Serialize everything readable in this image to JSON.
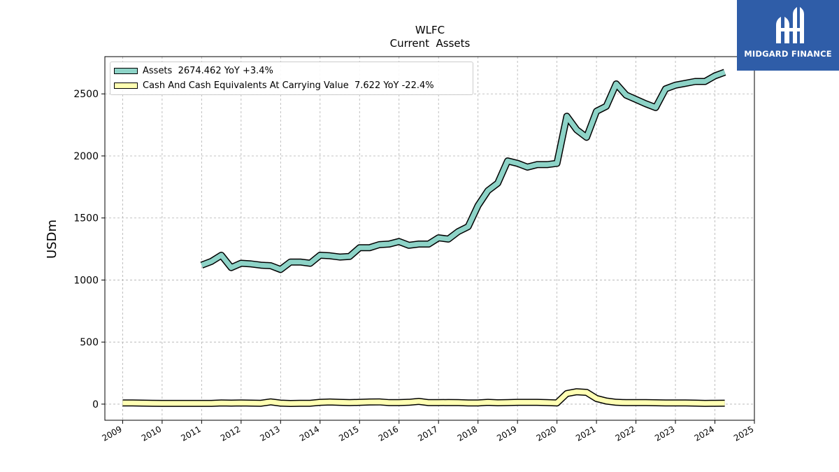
{
  "chart_data": {
    "type": "line",
    "title": "WLFC",
    "subtitle": "Current  Assets",
    "ylabel": "USDm",
    "xlabel": "",
    "xlim": [
      2008.55,
      2025.0
    ],
    "ylim": [
      -130,
      2800
    ],
    "x_ticks": [
      "2009",
      "2010",
      "2011",
      "2012",
      "2013",
      "2014",
      "2015",
      "2016",
      "2017",
      "2018",
      "2019",
      "2020",
      "2021",
      "2022",
      "2023",
      "2024",
      "2025"
    ],
    "y_ticks": [
      "0",
      "500",
      "1000",
      "1500",
      "2000",
      "2500"
    ],
    "grid": true,
    "legend_position": "top-left",
    "series": [
      {
        "name": "Assets",
        "legend_label": "Assets  2674.462 YoY +3.4%",
        "color": "#8dd3c7",
        "x": [
          "2011-01-01",
          "2011-04-01",
          "2011-07-01",
          "2011-10-01",
          "2012-01-01",
          "2012-04-01",
          "2012-07-01",
          "2012-10-01",
          "2013-01-01",
          "2013-04-01",
          "2013-07-01",
          "2013-10-01",
          "2014-01-01",
          "2014-04-01",
          "2014-07-01",
          "2014-10-01",
          "2015-01-01",
          "2015-04-01",
          "2015-07-01",
          "2015-10-01",
          "2016-01-01",
          "2016-04-01",
          "2016-07-01",
          "2016-10-01",
          "2017-01-01",
          "2017-04-01",
          "2017-07-01",
          "2017-10-01",
          "2018-01-01",
          "2018-04-01",
          "2018-07-01",
          "2018-10-01",
          "2019-01-01",
          "2019-04-01",
          "2019-07-01",
          "2019-10-01",
          "2020-01-01",
          "2020-04-01",
          "2020-07-01",
          "2020-10-01",
          "2021-01-01",
          "2021-04-01",
          "2021-07-01",
          "2021-10-01",
          "2022-01-01",
          "2022-04-01",
          "2022-07-01",
          "2022-10-01",
          "2023-01-01",
          "2023-04-01",
          "2023-07-01",
          "2023-10-01",
          "2024-01-01",
          "2024-04-01"
        ],
        "values": [
          1120,
          1150,
          1200,
          1100,
          1135,
          1130,
          1120,
          1115,
          1085,
          1145,
          1145,
          1135,
          1200,
          1195,
          1185,
          1190,
          1260,
          1260,
          1285,
          1290,
          1310,
          1280,
          1290,
          1290,
          1340,
          1330,
          1390,
          1430,
          1600,
          1720,
          1780,
          1960,
          1940,
          1910,
          1930,
          1930,
          1940,
          2320,
          2210,
          2150,
          2360,
          2400,
          2580,
          2490,
          2455,
          2420,
          2390,
          2540,
          2570,
          2585,
          2600,
          2600,
          2645,
          2674.462
        ]
      },
      {
        "name": "Cash And Cash Equivalents At Carrying Value",
        "legend_label": "Cash And Cash Equivalents At Carrying Value  7.622 YoY -22.4%",
        "color": "#ffffb3",
        "x": [
          "2009-01-01",
          "2009-04-01",
          "2009-07-01",
          "2009-10-01",
          "2010-01-01",
          "2010-04-01",
          "2010-07-01",
          "2010-10-01",
          "2011-01-01",
          "2011-04-01",
          "2011-07-01",
          "2011-10-01",
          "2012-01-01",
          "2012-04-01",
          "2012-07-01",
          "2012-10-01",
          "2013-01-01",
          "2013-04-01",
          "2013-07-01",
          "2013-10-01",
          "2014-01-01",
          "2014-04-01",
          "2014-07-01",
          "2014-10-01",
          "2015-01-01",
          "2015-04-01",
          "2015-07-01",
          "2015-10-01",
          "2016-01-01",
          "2016-04-01",
          "2016-07-01",
          "2016-10-01",
          "2017-01-01",
          "2017-04-01",
          "2017-07-01",
          "2017-10-01",
          "2018-01-01",
          "2018-04-01",
          "2018-07-01",
          "2018-10-01",
          "2019-01-01",
          "2019-04-01",
          "2019-07-01",
          "2019-10-01",
          "2020-01-01",
          "2020-04-01",
          "2020-07-01",
          "2020-10-01",
          "2021-01-01",
          "2021-04-01",
          "2021-07-01",
          "2021-10-01",
          "2022-01-01",
          "2022-04-01",
          "2022-07-01",
          "2022-10-01",
          "2023-01-01",
          "2023-04-01",
          "2023-07-01",
          "2023-10-01",
          "2024-01-01",
          "2024-04-01"
        ],
        "values": [
          10,
          9,
          8,
          7,
          6,
          6,
          6,
          6,
          6,
          6,
          10,
          8,
          9,
          8,
          7,
          18,
          8,
          5,
          7,
          7,
          14,
          17,
          14,
          12,
          14,
          17,
          18,
          12,
          12,
          15,
          22,
          12,
          12,
          13,
          12,
          10,
          10,
          14,
          11,
          12,
          14,
          14,
          14,
          12,
          10,
          85,
          100,
          95,
          45,
          25,
          15,
          12,
          12,
          12,
          11,
          10,
          10,
          10,
          8,
          6,
          7,
          7.622
        ]
      }
    ]
  },
  "logo": {
    "text": "MIDGARD FINANCE"
  }
}
